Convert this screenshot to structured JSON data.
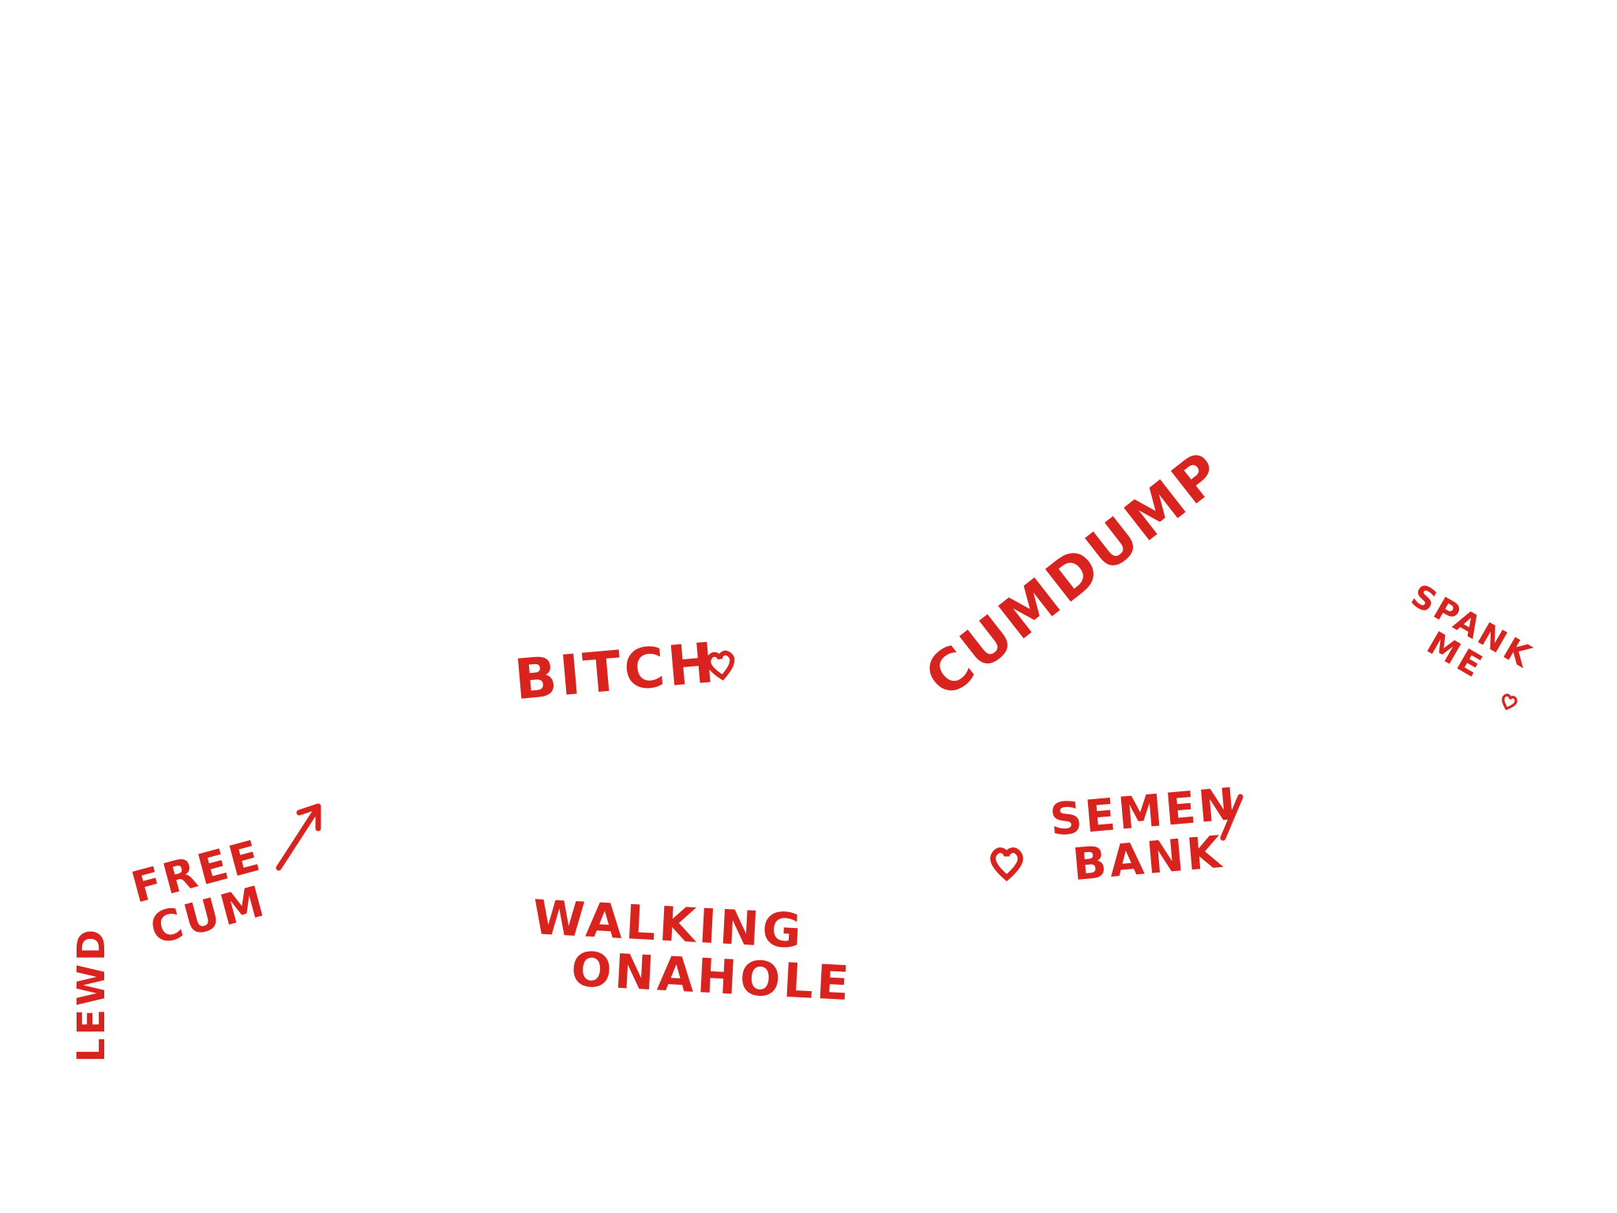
{
  "words": [
    {
      "lines": [
        "BITCH"
      ]
    },
    {
      "lines": [
        "CUMDUMP"
      ]
    },
    {
      "lines": [
        "SPANK",
        "ME"
      ]
    },
    {
      "lines": [
        "SEMEN",
        "BANK"
      ]
    },
    {
      "lines": [
        "FREE",
        "CUM"
      ]
    },
    {
      "lines": [
        "WALKING",
        "ONAHOLE"
      ]
    },
    {
      "lines": [
        "LEWD"
      ]
    }
  ]
}
